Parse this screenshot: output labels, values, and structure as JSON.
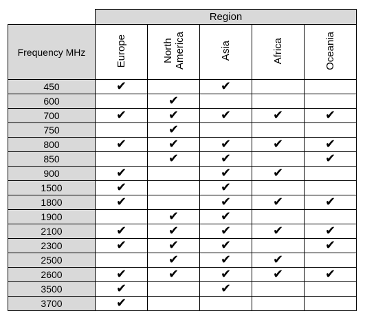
{
  "table": {
    "region_header": "Region",
    "frequency_header": "Frequency MHz",
    "regions": [
      "Europe",
      "North\nAmerica",
      "Asia",
      "Africa",
      "Oceania"
    ],
    "check_glyph": "✔",
    "rows": [
      {
        "freq": "450",
        "marks": [
          true,
          false,
          true,
          false,
          false
        ]
      },
      {
        "freq": "600",
        "marks": [
          false,
          true,
          false,
          false,
          false
        ]
      },
      {
        "freq": "700",
        "marks": [
          true,
          true,
          true,
          true,
          true
        ]
      },
      {
        "freq": "750",
        "marks": [
          false,
          true,
          false,
          false,
          false
        ]
      },
      {
        "freq": "800",
        "marks": [
          true,
          true,
          true,
          true,
          true
        ]
      },
      {
        "freq": "850",
        "marks": [
          false,
          true,
          true,
          false,
          true
        ]
      },
      {
        "freq": "900",
        "marks": [
          true,
          false,
          true,
          true,
          false
        ]
      },
      {
        "freq": "1500",
        "marks": [
          true,
          false,
          true,
          false,
          false
        ]
      },
      {
        "freq": "1800",
        "marks": [
          true,
          false,
          true,
          true,
          true
        ]
      },
      {
        "freq": "1900",
        "marks": [
          false,
          true,
          true,
          false,
          false
        ]
      },
      {
        "freq": "2100",
        "marks": [
          true,
          true,
          true,
          true,
          true
        ]
      },
      {
        "freq": "2300",
        "marks": [
          true,
          true,
          true,
          false,
          true
        ]
      },
      {
        "freq": "2500",
        "marks": [
          false,
          true,
          true,
          true,
          false
        ]
      },
      {
        "freq": "2600",
        "marks": [
          true,
          true,
          true,
          true,
          true
        ]
      },
      {
        "freq": "3500",
        "marks": [
          true,
          false,
          true,
          false,
          false
        ]
      },
      {
        "freq": "3700",
        "marks": [
          true,
          false,
          false,
          false,
          false
        ]
      }
    ]
  }
}
